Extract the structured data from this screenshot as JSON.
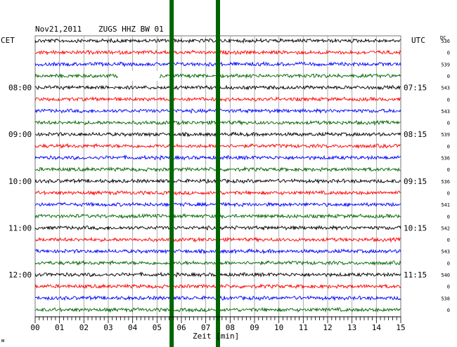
{
  "header": {
    "date": "Nov21,2011",
    "station": "ZUGS HHZ BW 01",
    "left_tz": "CET",
    "right_tz": "UTC",
    "dc_label": "DC"
  },
  "chart_data": {
    "type": "line",
    "title": "Nov21,2011  ZUGS HHZ BW 01",
    "xlabel": "Zeit [min]",
    "xlim": [
      0,
      15
    ],
    "x_ticks": [
      "00",
      "01",
      "02",
      "03",
      "04",
      "05",
      "06",
      "07",
      "08",
      "09",
      "10",
      "11",
      "12",
      "13",
      "14",
      "15"
    ],
    "left_time_labels": [
      {
        "trace": 4,
        "label": "08:00"
      },
      {
        "trace": 8,
        "label": "09:00"
      },
      {
        "trace": 12,
        "label": "10:00"
      },
      {
        "trace": 16,
        "label": "11:00"
      },
      {
        "trace": 20,
        "label": "12:00"
      }
    ],
    "right_time_labels": [
      {
        "trace": 4,
        "label": "07:15"
      },
      {
        "trace": 8,
        "label": "08:15"
      },
      {
        "trace": 12,
        "label": "09:15"
      },
      {
        "trace": 16,
        "label": "10:15"
      },
      {
        "trace": 20,
        "label": "11:15"
      }
    ],
    "dc_values": [
      "536",
      "0",
      "539",
      "0",
      "543",
      "0",
      "543",
      "0",
      "539",
      "0",
      "536",
      "0",
      "536",
      "0",
      "541",
      "0",
      "542",
      "0",
      "543",
      "0",
      "540",
      "0",
      "538",
      "0"
    ],
    "trace_colors": [
      "#000000",
      "#ff0000",
      "#0000ff",
      "#006400"
    ],
    "trace_count": 24,
    "data_gap": {
      "trace": 3,
      "from_min": 3.4,
      "to_min": 5.1
    },
    "overlay_bars": [
      {
        "x_min": 5.6,
        "color": "#006400"
      },
      {
        "x_min": 7.5,
        "color": "#006400"
      }
    ],
    "grid": true
  },
  "footer": {
    "corner_mark": "ᴍ"
  }
}
